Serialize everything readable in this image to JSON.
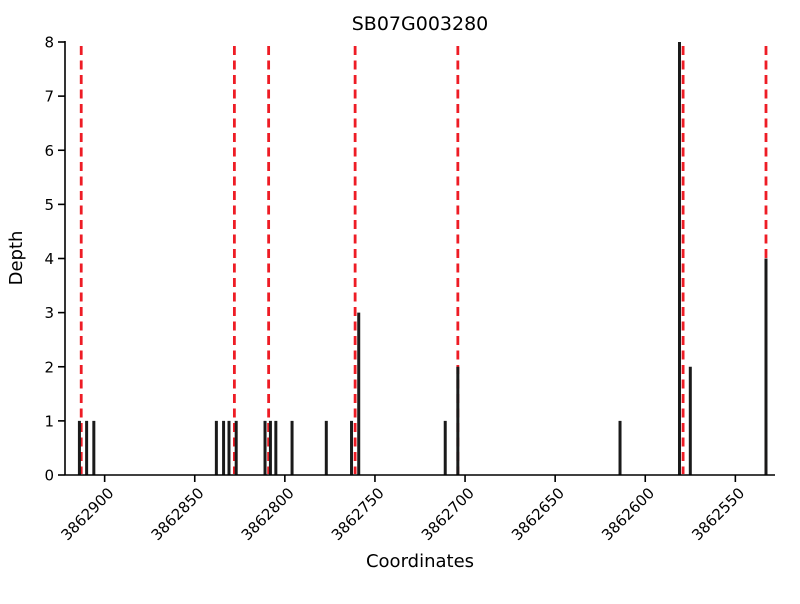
{
  "colors": {
    "bar": "#1a1a1a",
    "marker_line": "#ee1c25",
    "axis": "#000000",
    "text": "#000000",
    "background": "#ffffff"
  },
  "chart_data": {
    "type": "bar",
    "title": "SB07G003280",
    "xlabel": "Coordinates",
    "ylabel": "Depth",
    "x_descending": true,
    "xlim": [
      3862922,
      3862528
    ],
    "ylim": [
      0,
      8
    ],
    "xticks": [
      3862900,
      3862850,
      3862800,
      3862750,
      3862700,
      3862650,
      3862600,
      3862550
    ],
    "yticks": [
      0,
      1,
      2,
      3,
      4,
      5,
      6,
      7,
      8
    ],
    "grid": false,
    "legend": false,
    "bars": [
      {
        "x": 3862914,
        "depth": 1
      },
      {
        "x": 3862910,
        "depth": 1
      },
      {
        "x": 3862906,
        "depth": 1
      },
      {
        "x": 3862838,
        "depth": 1
      },
      {
        "x": 3862834,
        "depth": 1
      },
      {
        "x": 3862831,
        "depth": 1
      },
      {
        "x": 3862827,
        "depth": 1
      },
      {
        "x": 3862811,
        "depth": 1
      },
      {
        "x": 3862808,
        "depth": 1
      },
      {
        "x": 3862805,
        "depth": 1
      },
      {
        "x": 3862796,
        "depth": 1
      },
      {
        "x": 3862777,
        "depth": 1
      },
      {
        "x": 3862763,
        "depth": 1
      },
      {
        "x": 3862759,
        "depth": 3
      },
      {
        "x": 3862711,
        "depth": 1
      },
      {
        "x": 3862704,
        "depth": 2
      },
      {
        "x": 3862614,
        "depth": 1
      },
      {
        "x": 3862581,
        "depth": 8
      },
      {
        "x": 3862575,
        "depth": 2
      },
      {
        "x": 3862533,
        "depth": 4
      }
    ],
    "marker_lines": [
      3862913,
      3862828,
      3862809,
      3862761,
      3862704,
      3862579,
      3862533
    ]
  }
}
